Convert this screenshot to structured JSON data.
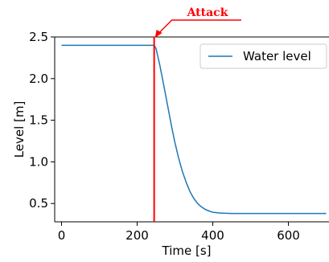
{
  "chart_data": {
    "type": "line",
    "title": "",
    "xlabel": "Time [s]",
    "ylabel": "Level [m]",
    "xlim": [
      -18,
      718
    ],
    "ylim": [
      0.28,
      2.5
    ],
    "xticks": [
      0,
      200,
      400,
      600
    ],
    "yticks": [
      0.5,
      1.0,
      1.5,
      2.0,
      2.5
    ],
    "xtick_labels": [
      "0",
      "200",
      "400",
      "600"
    ],
    "ytick_labels": [
      "0.5",
      "1.0",
      "1.5",
      "2.0",
      "2.5"
    ],
    "grid": false,
    "legend_position": "top-right",
    "series": [
      {
        "name": "Water level",
        "color": "#1f77b4",
        "x": [
          0,
          100,
          200,
          245,
          250,
          260,
          270,
          280,
          290,
          300,
          310,
          320,
          330,
          340,
          350,
          360,
          370,
          380,
          390,
          400,
          420,
          450,
          500,
          600,
          700
        ],
        "y": [
          2.4,
          2.4,
          2.4,
          2.4,
          2.36,
          2.16,
          1.93,
          1.69,
          1.45,
          1.23,
          1.04,
          0.88,
          0.75,
          0.64,
          0.56,
          0.5,
          0.46,
          0.43,
          0.41,
          0.395,
          0.385,
          0.38,
          0.38,
          0.38,
          0.38
        ]
      }
    ],
    "annotations": [
      {
        "text": "Attack",
        "color": "#ff0000",
        "x": 245,
        "type": "vertical-line-with-arrow"
      }
    ]
  }
}
